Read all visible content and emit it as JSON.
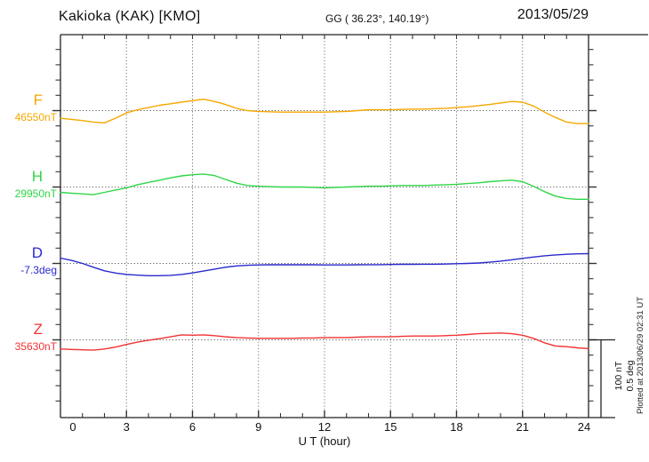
{
  "header": {
    "title": "Kakioka (KAK)  [KMO]",
    "coordinates": "GG ( 36.23°, 140.19°)",
    "date": "2013/05/29"
  },
  "xaxis": {
    "label": "U T (hour)",
    "ticks": [
      "0",
      "3",
      "6",
      "9",
      "12",
      "15",
      "18",
      "21",
      "24"
    ]
  },
  "scalebar": {
    "line1": "100 nT",
    "line2": "0.5 deg"
  },
  "footer": {
    "plotted_at": "Plotted at 2013/06/29 02:31 UT"
  },
  "chart_data": {
    "type": "line",
    "title": "Kakioka (KAK) [KMO] magnetogram, 2013/05/29",
    "xlabel": "U T (hour)",
    "x_range": [
      0,
      24
    ],
    "x_tick_hours": [
      0,
      3,
      6,
      9,
      12,
      15,
      18,
      21,
      24
    ],
    "grid": "dotted vertical lines every 3 h; dotted horizontal reference line for each component",
    "legend_position": "left margin, one colored label per stacked trace",
    "scale": {
      "bar_nT": 100,
      "bar_deg": 0.5,
      "nT_per_division": 20,
      "deg_per_division": 0.1
    },
    "series": [
      {
        "name": "F",
        "unit": "nT",
        "color": "#F5A800",
        "reference_value": 46550,
        "reference_label": "46550nT",
        "points": [
          [
            0,
            46540
          ],
          [
            0.5,
            46538.5
          ],
          [
            1,
            46537
          ],
          [
            1.5,
            46535
          ],
          [
            2,
            46534
          ],
          [
            2.5,
            46540
          ],
          [
            3,
            46547
          ],
          [
            3.5,
            46551
          ],
          [
            4,
            46554
          ],
          [
            4.5,
            46557
          ],
          [
            5,
            46559
          ],
          [
            5.5,
            46561
          ],
          [
            6,
            46563
          ],
          [
            6.5,
            46565
          ],
          [
            7,
            46562
          ],
          [
            7.5,
            46558
          ],
          [
            8,
            46553
          ],
          [
            8.5,
            46550
          ],
          [
            9,
            46549
          ],
          [
            9.5,
            46548.5
          ],
          [
            10,
            46548
          ],
          [
            10.5,
            46548
          ],
          [
            11,
            46548
          ],
          [
            11.5,
            46548
          ],
          [
            12,
            46548
          ],
          [
            12.5,
            46548.5
          ],
          [
            13,
            46549
          ],
          [
            13.5,
            46550
          ],
          [
            14,
            46551
          ],
          [
            14.5,
            46551
          ],
          [
            15,
            46551
          ],
          [
            15.5,
            46551.5
          ],
          [
            16,
            46552
          ],
          [
            16.5,
            46552
          ],
          [
            17,
            46552.5
          ],
          [
            17.5,
            46553
          ],
          [
            18,
            46554
          ],
          [
            18.5,
            46555
          ],
          [
            19,
            46556.5
          ],
          [
            19.5,
            46558
          ],
          [
            20,
            46560
          ],
          [
            20.5,
            46562
          ],
          [
            21,
            46561
          ],
          [
            21.5,
            46556
          ],
          [
            22,
            46548
          ],
          [
            22.5,
            46541
          ],
          [
            23,
            46535
          ],
          [
            23.5,
            46533
          ],
          [
            24,
            46533
          ]
        ]
      },
      {
        "name": "H",
        "unit": "nT",
        "color": "#2FD648",
        "reference_value": 29950,
        "reference_label": "29950nT",
        "points": [
          [
            0,
            29943
          ],
          [
            0.5,
            29942
          ],
          [
            1,
            29941
          ],
          [
            1.5,
            29940
          ],
          [
            2,
            29943
          ],
          [
            2.5,
            29946
          ],
          [
            3,
            29949
          ],
          [
            3.5,
            29953
          ],
          [
            4,
            29956
          ],
          [
            4.5,
            29959
          ],
          [
            5,
            29962
          ],
          [
            5.5,
            29964.5
          ],
          [
            6,
            29966
          ],
          [
            6.5,
            29967
          ],
          [
            7,
            29965
          ],
          [
            7.5,
            29960
          ],
          [
            8,
            29955
          ],
          [
            8.5,
            29952
          ],
          [
            9,
            29951
          ],
          [
            9.5,
            29950.5
          ],
          [
            10,
            29950
          ],
          [
            10.5,
            29950
          ],
          [
            11,
            29950
          ],
          [
            11.5,
            29949.5
          ],
          [
            12,
            29949
          ],
          [
            12.5,
            29949.5
          ],
          [
            13,
            29950
          ],
          [
            13.5,
            29950.5
          ],
          [
            14,
            29951
          ],
          [
            14.5,
            29951
          ],
          [
            15,
            29951.5
          ],
          [
            15.5,
            29952
          ],
          [
            16,
            29952
          ],
          [
            16.5,
            29952
          ],
          [
            17,
            29952.5
          ],
          [
            17.5,
            29953
          ],
          [
            18,
            29953.5
          ],
          [
            18.5,
            29954.5
          ],
          [
            19,
            29955.5
          ],
          [
            19.5,
            29957
          ],
          [
            20,
            29958
          ],
          [
            20.5,
            29959
          ],
          [
            21,
            29957
          ],
          [
            21.5,
            29951
          ],
          [
            22,
            29944
          ],
          [
            22.5,
            29938
          ],
          [
            23,
            29935
          ],
          [
            23.5,
            29934
          ],
          [
            24,
            29934
          ]
        ]
      },
      {
        "name": "D",
        "unit": "deg",
        "color": "#2929CC",
        "reference_value": -7.3,
        "reference_label": "-7.3deg",
        "points": [
          [
            0,
            -7.265
          ],
          [
            0.5,
            -7.28
          ],
          [
            1,
            -7.3
          ],
          [
            1.5,
            -7.325
          ],
          [
            2,
            -7.348
          ],
          [
            2.5,
            -7.363
          ],
          [
            3,
            -7.372
          ],
          [
            3.5,
            -7.377
          ],
          [
            4,
            -7.38
          ],
          [
            4.5,
            -7.38
          ],
          [
            5,
            -7.378
          ],
          [
            5.5,
            -7.372
          ],
          [
            6,
            -7.362
          ],
          [
            6.5,
            -7.35
          ],
          [
            7,
            -7.337
          ],
          [
            7.5,
            -7.325
          ],
          [
            8,
            -7.316
          ],
          [
            8.5,
            -7.312
          ],
          [
            9,
            -7.31
          ],
          [
            9.5,
            -7.309
          ],
          [
            10,
            -7.309
          ],
          [
            10.5,
            -7.309
          ],
          [
            11,
            -7.309
          ],
          [
            11.5,
            -7.309
          ],
          [
            12,
            -7.31
          ],
          [
            12.5,
            -7.31
          ],
          [
            13,
            -7.31
          ],
          [
            13.5,
            -7.309
          ],
          [
            14,
            -7.308
          ],
          [
            14.5,
            -7.308
          ],
          [
            15,
            -7.307
          ],
          [
            15.5,
            -7.306
          ],
          [
            16,
            -7.306
          ],
          [
            16.5,
            -7.305
          ],
          [
            17,
            -7.305
          ],
          [
            17.5,
            -7.304
          ],
          [
            18,
            -7.302
          ],
          [
            18.5,
            -7.3
          ],
          [
            19,
            -7.297
          ],
          [
            19.5,
            -7.292
          ],
          [
            20,
            -7.285
          ],
          [
            20.5,
            -7.276
          ],
          [
            21,
            -7.267
          ],
          [
            21.5,
            -7.258
          ],
          [
            22,
            -7.25
          ],
          [
            22.5,
            -7.244
          ],
          [
            23,
            -7.24
          ],
          [
            23.5,
            -7.237
          ],
          [
            24,
            -7.236
          ]
        ]
      },
      {
        "name": "Z",
        "unit": "nT",
        "color": "#F23333",
        "reference_value": 35630,
        "reference_label": "35630nT",
        "points": [
          [
            0,
            35618
          ],
          [
            0.5,
            35617.5
          ],
          [
            1,
            35617
          ],
          [
            1.5,
            35616.5
          ],
          [
            2,
            35618
          ],
          [
            2.5,
            35620.5
          ],
          [
            3,
            35624
          ],
          [
            3.5,
            35627
          ],
          [
            4,
            35629.5
          ],
          [
            4.5,
            35631.5
          ],
          [
            5,
            35634
          ],
          [
            5.5,
            35636.5
          ],
          [
            6,
            35636
          ],
          [
            6.5,
            35636.5
          ],
          [
            7,
            35635.5
          ],
          [
            7.5,
            35634
          ],
          [
            8,
            35633
          ],
          [
            8.5,
            35632.5
          ],
          [
            9,
            35632
          ],
          [
            9.5,
            35632
          ],
          [
            10,
            35632
          ],
          [
            10.5,
            35632
          ],
          [
            11,
            35632.5
          ],
          [
            11.5,
            35632.5
          ],
          [
            12,
            35633
          ],
          [
            12.5,
            35633
          ],
          [
            13,
            35633
          ],
          [
            13.5,
            35633.5
          ],
          [
            14,
            35634
          ],
          [
            14.5,
            35634
          ],
          [
            15,
            35634
          ],
          [
            15.5,
            35634.5
          ],
          [
            16,
            35635
          ],
          [
            16.5,
            35635
          ],
          [
            17,
            35635
          ],
          [
            17.5,
            35635.5
          ],
          [
            18,
            35636
          ],
          [
            18.5,
            35637
          ],
          [
            19,
            35638
          ],
          [
            19.5,
            35638.5
          ],
          [
            20,
            35639
          ],
          [
            20.5,
            35638
          ],
          [
            21,
            35636
          ],
          [
            21.5,
            35632
          ],
          [
            22,
            35626
          ],
          [
            22.5,
            35622
          ],
          [
            23,
            35621
          ],
          [
            23.5,
            35619.5
          ],
          [
            24,
            35618.5
          ]
        ]
      }
    ]
  }
}
